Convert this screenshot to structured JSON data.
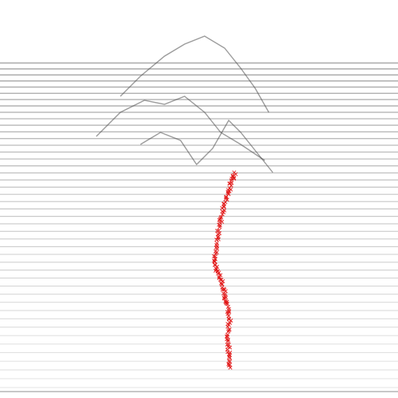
{
  "image": {
    "subject": "3d-contour-terrain-with-red-path",
    "background_color": "#ffffff",
    "contour_color": "#8a8a8a",
    "path_color": "#e01010",
    "path_marker": "cross"
  }
}
